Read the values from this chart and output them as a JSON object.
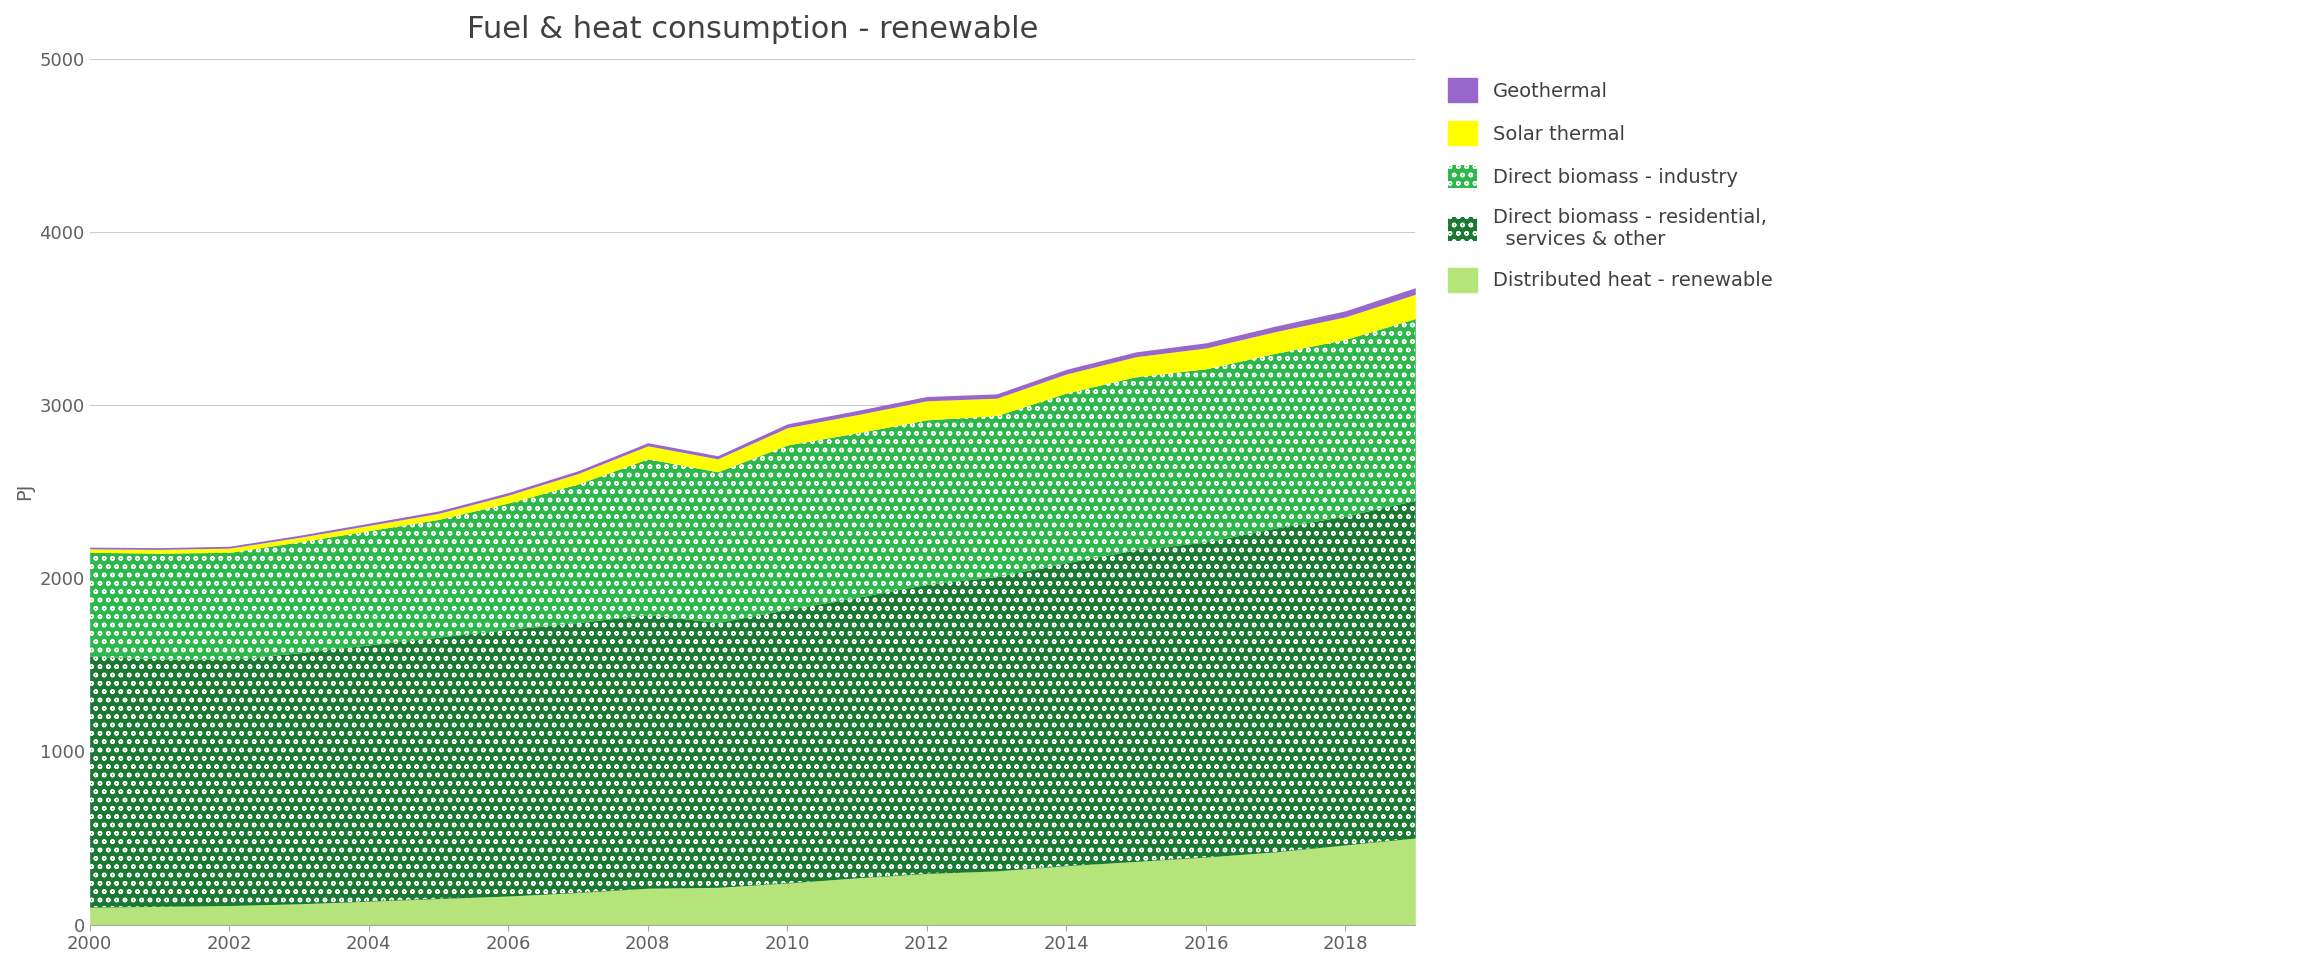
{
  "title": "Fuel & heat consumption - renewable",
  "ylabel": "PJ",
  "years": [
    2000,
    2001,
    2002,
    2003,
    2004,
    2005,
    2006,
    2007,
    2008,
    2009,
    2010,
    2011,
    2012,
    2013,
    2014,
    2015,
    2016,
    2017,
    2018,
    2019
  ],
  "distributed_heat": [
    100,
    105,
    110,
    120,
    135,
    150,
    165,
    185,
    210,
    215,
    240,
    270,
    295,
    310,
    340,
    365,
    390,
    420,
    460,
    500
  ],
  "biomass_residential": [
    1450,
    1430,
    1420,
    1450,
    1480,
    1510,
    1540,
    1560,
    1580,
    1530,
    1580,
    1620,
    1670,
    1700,
    1750,
    1800,
    1820,
    1870,
    1900,
    1950
  ],
  "biomass_industry": [
    600,
    610,
    620,
    640,
    660,
    680,
    730,
    800,
    900,
    870,
    950,
    950,
    950,
    930,
    980,
    1000,
    1000,
    1010,
    1020,
    1050
  ],
  "solar_thermal": [
    20,
    22,
    24,
    26,
    30,
    35,
    45,
    60,
    75,
    75,
    100,
    105,
    110,
    100,
    110,
    115,
    120,
    125,
    130,
    140
  ],
  "geothermal": [
    10,
    10,
    11,
    12,
    13,
    14,
    15,
    16,
    18,
    18,
    22,
    24,
    25,
    25,
    27,
    28,
    30,
    32,
    35,
    38
  ],
  "colors": {
    "distributed_heat": "#b5e47a",
    "biomass_residential": "#1a7a32",
    "biomass_industry": "#2db84b",
    "solar_thermal": "#ffff00",
    "geothermal": "#9966cc"
  },
  "ylim": [
    0,
    5000
  ],
  "yticks": [
    0,
    1000,
    2000,
    3000,
    4000,
    5000
  ],
  "background_color": "#ffffff",
  "title_fontsize": 22,
  "axis_fontsize": 14,
  "tick_fontsize": 13,
  "legend_fontsize": 14
}
